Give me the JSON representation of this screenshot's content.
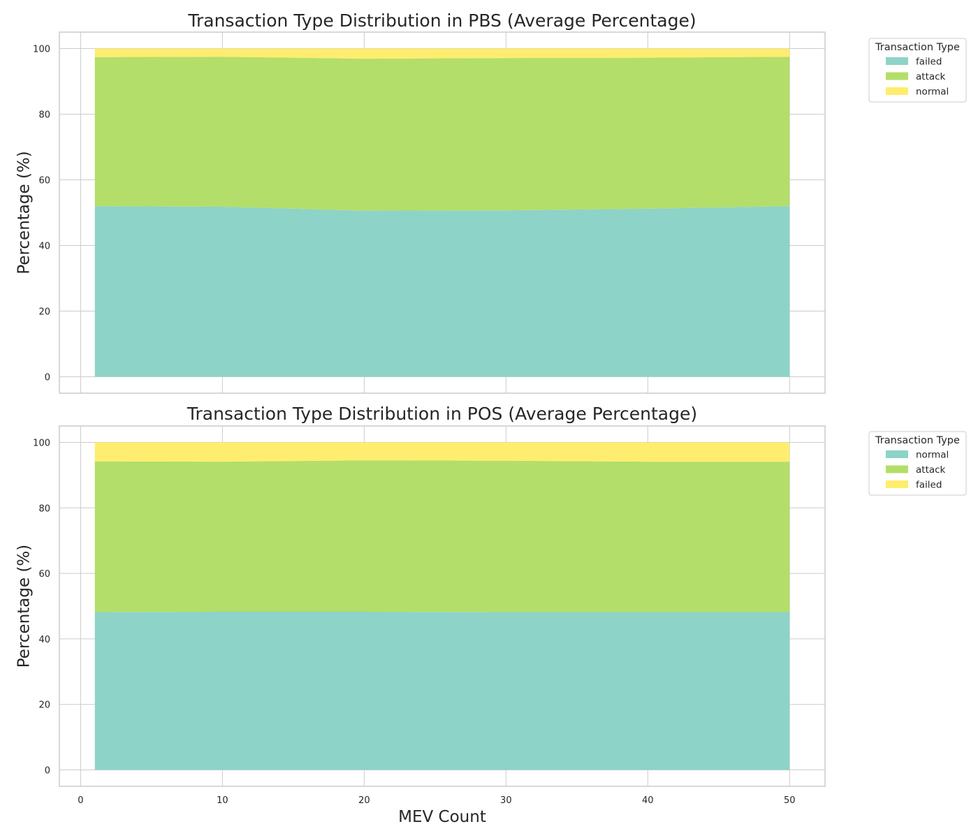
{
  "chart_data": [
    {
      "type": "area",
      "stacked": true,
      "title": "Transaction Type Distribution in PBS (Average Percentage)",
      "ylabel": "Percentage (%)",
      "xlabel": "",
      "xlim": [
        -1.5,
        52.5
      ],
      "ylim": [
        -5,
        105
      ],
      "xticks": [
        0,
        10,
        20,
        30,
        40,
        50
      ],
      "yticks": [
        0,
        20,
        40,
        60,
        80,
        100
      ],
      "show_x_tick_labels": false,
      "grid": true,
      "legend": {
        "title": "Transaction Type",
        "placement": "outside-top-right"
      },
      "x": [
        1,
        10,
        20,
        30,
        40,
        50
      ],
      "series": [
        {
          "name": "failed",
          "color": "#8dd3c7",
          "values": [
            52.0,
            51.8,
            50.6,
            50.7,
            51.2,
            52.0
          ]
        },
        {
          "name": "attack",
          "color": "#b3de69",
          "values": [
            45.4,
            45.7,
            46.3,
            46.4,
            46.0,
            45.5
          ]
        },
        {
          "name": "normal",
          "color": "#ffed6f",
          "values": [
            2.6,
            2.5,
            3.1,
            2.9,
            2.8,
            2.5
          ]
        }
      ]
    },
    {
      "type": "area",
      "stacked": true,
      "title": "Transaction Type Distribution in POS (Average Percentage)",
      "ylabel": "Percentage (%)",
      "xlabel": "MEV Count",
      "xlim": [
        -1.5,
        52.5
      ],
      "ylim": [
        -5,
        105
      ],
      "xticks": [
        0,
        10,
        20,
        30,
        40,
        50
      ],
      "yticks": [
        0,
        20,
        40,
        60,
        80,
        100
      ],
      "show_x_tick_labels": true,
      "grid": true,
      "legend": {
        "title": "Transaction Type",
        "placement": "outside-top-right"
      },
      "x": [
        1,
        10,
        20,
        30,
        40,
        50
      ],
      "series": [
        {
          "name": "normal",
          "color": "#8dd3c7",
          "values": [
            48.2,
            48.3,
            48.3,
            48.2,
            48.2,
            48.2
          ]
        },
        {
          "name": "attack",
          "color": "#b3de69",
          "values": [
            46.0,
            45.8,
            46.2,
            46.2,
            45.9,
            45.9
          ]
        },
        {
          "name": "failed",
          "color": "#ffed6f",
          "values": [
            5.8,
            5.9,
            5.5,
            5.6,
            5.9,
            5.9
          ]
        }
      ]
    }
  ]
}
